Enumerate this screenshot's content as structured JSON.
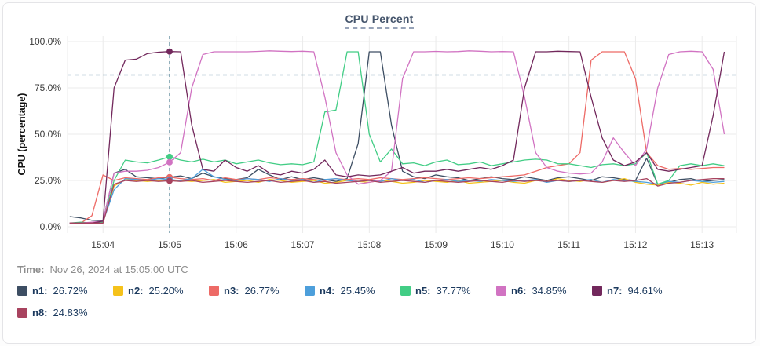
{
  "panel": {
    "title": "CPU Percent"
  },
  "time": {
    "label": "Time:",
    "value": "Nov 26, 2024 at 15:05:00 UTC"
  },
  "colors": {
    "title": "#44546b",
    "grid": "#ebebeb",
    "axis_text": "#3a3a3a",
    "threshold": "#4d7e92",
    "crosshair": "#4d7e92",
    "legend_text": "#1c3a5e",
    "time_text": "#8d8d8d"
  },
  "chart_data": {
    "type": "line",
    "title": "CPU Percent",
    "xlabel": "",
    "ylabel": "CPU (percentage)",
    "ylim": [
      0,
      100
    ],
    "grid": true,
    "legend_position": "bottom",
    "y_tick_values": [
      100,
      75,
      50,
      25,
      0
    ],
    "y_tick_labels": [
      "100.0%",
      "75.0%",
      "50.0%",
      "25.0%",
      "0.0%"
    ],
    "x_tick_labels": [
      "15:04",
      "15:05",
      "15:06",
      "15:07",
      "15:08",
      "15:09",
      "15:10",
      "15:11",
      "15:12",
      "15:13"
    ],
    "x_tick_seconds": [
      30,
      90,
      150,
      210,
      270,
      330,
      390,
      450,
      510,
      570
    ],
    "x_domain_seconds": [
      -2,
      601
    ],
    "time_start": "15:03:30",
    "sample_step_seconds": 10,
    "threshold_line_percent": 82,
    "crosshair": {
      "time": "15:05:00",
      "t_seconds": 90
    },
    "series": [
      {
        "name": "n1",
        "color": "#3d4e63",
        "values": [
          5.5,
          4.8,
          3.5,
          3.2,
          29,
          31,
          27,
          26.5,
          26,
          26.72,
          27.5,
          26,
          29,
          27,
          26,
          25.5,
          26.5,
          31,
          28,
          25.5,
          27,
          25.5,
          26.5,
          25.5,
          24.5,
          26,
          45,
          94.5,
          94.5,
          55,
          30,
          27,
          26,
          28,
          27,
          26.5,
          25,
          26,
          27,
          26,
          25.5,
          27,
          26,
          25,
          26.5,
          27,
          26,
          25,
          27,
          26.5,
          25.5,
          25,
          37,
          23,
          24,
          25.5,
          26,
          24.5,
          25,
          25.5
        ]
      },
      {
        "name": "n2",
        "color": "#f5c21b",
        "values": [
          2,
          2,
          2,
          2.2,
          22,
          25.5,
          25,
          24.5,
          25,
          25.2,
          25,
          24.5,
          25,
          25.5,
          24,
          24.5,
          25,
          24,
          25.5,
          25,
          24,
          24.5,
          25,
          23.5,
          24,
          25,
          24.5,
          24,
          25,
          24.5,
          23.5,
          24,
          25,
          24.5,
          24,
          25,
          23.5,
          24,
          24.5,
          25,
          24,
          23.5,
          25,
          24.5,
          26,
          25,
          24.5,
          25.5,
          24,
          25,
          26,
          24,
          23,
          22.5,
          24,
          23.5,
          22.5,
          24,
          23,
          23.5
        ]
      },
      {
        "name": "n3",
        "color": "#ed6a66",
        "values": [
          2,
          2,
          6,
          28,
          25,
          26.5,
          26,
          25.5,
          26.5,
          26.77,
          26,
          25.5,
          26,
          25,
          26.5,
          25.5,
          26,
          25.5,
          26.5,
          26,
          25.5,
          26,
          25.5,
          25,
          26,
          25.5,
          26,
          25.5,
          26.5,
          26,
          25.5,
          26,
          26.5,
          26,
          25.5,
          26,
          26.5,
          26,
          26.5,
          27,
          27.5,
          28,
          30,
          32,
          33,
          34,
          40,
          90,
          94.5,
          94.5,
          94.5,
          80,
          40,
          33,
          31,
          31.5,
          31,
          31.5,
          32,
          32
        ]
      },
      {
        "name": "n4",
        "color": "#4d9fdb",
        "values": [
          2,
          2,
          2,
          2.5,
          20,
          26,
          25.5,
          25,
          26,
          25.45,
          25,
          26,
          31,
          27,
          25.5,
          25,
          26,
          25.5,
          24.5,
          26,
          25,
          25.5,
          24,
          25.5,
          26,
          25,
          24.5,
          25,
          24.5,
          26,
          25,
          25.5,
          24,
          25,
          25.5,
          24.5,
          25,
          24.5,
          25.5,
          25,
          24.5,
          25,
          25.5,
          24,
          25,
          24.5,
          25,
          25.5,
          24,
          25.5,
          25,
          24.5,
          24,
          23,
          24.5,
          24,
          25,
          24.5,
          24,
          24.5
        ]
      },
      {
        "name": "n5",
        "color": "#42cd85",
        "values": [
          2,
          2.5,
          2,
          2.5,
          25,
          36,
          35,
          34.5,
          36,
          37.77,
          36,
          35,
          36.5,
          35,
          36,
          34,
          35,
          36,
          34.5,
          33.5,
          34,
          33.5,
          35,
          62,
          63,
          94.5,
          94.5,
          50,
          35,
          42,
          34,
          34.5,
          33,
          35,
          36,
          33.5,
          34,
          35,
          33,
          34,
          35,
          36,
          36.5,
          36,
          34,
          34,
          33,
          32,
          33.5,
          34,
          33,
          34,
          40,
          23,
          25,
          33,
          34,
          33,
          34,
          33
        ]
      },
      {
        "name": "n6",
        "color": "#d173c2",
        "values": [
          2,
          2,
          2.5,
          3,
          29,
          30,
          30,
          30.5,
          32,
          34.85,
          40,
          75,
          93,
          94.5,
          94.5,
          94.5,
          94.5,
          94.7,
          95,
          94.8,
          94.6,
          94.8,
          94.5,
          70,
          40,
          28,
          23,
          24,
          25,
          30,
          80,
          94.5,
          94.5,
          94.7,
          94.5,
          94.6,
          95,
          94.8,
          94.5,
          94.6,
          94.5,
          70,
          40,
          32,
          30,
          29,
          28.5,
          29,
          35,
          48,
          40,
          33,
          42,
          75,
          93,
          94.5,
          94.8,
          94.5,
          85,
          50
        ]
      },
      {
        "name": "n7",
        "color": "#72285c",
        "values": [
          2,
          2,
          2,
          3,
          75,
          90,
          90.5,
          93.5,
          94.3,
          94.61,
          94.5,
          55,
          31,
          30,
          36,
          32,
          30,
          33,
          29,
          28,
          30,
          29,
          31,
          36,
          28,
          27,
          28,
          27.5,
          28,
          30,
          32,
          29,
          30,
          30,
          31,
          30,
          31,
          32,
          31,
          33,
          36,
          75,
          94.5,
          94.5,
          94.8,
          94.6,
          94.5,
          70,
          48,
          36,
          33,
          35,
          40,
          31,
          30,
          31,
          32,
          33,
          60,
          94.5
        ]
      },
      {
        "name": "n8",
        "color": "#a8435f",
        "values": [
          2,
          2,
          2,
          2,
          23,
          25,
          24.5,
          25,
          24.5,
          24.83,
          24.5,
          25,
          24,
          24.5,
          25,
          24.5,
          24,
          24.5,
          25,
          24,
          24.5,
          25,
          24,
          24.5,
          23.5,
          24,
          24.5,
          25,
          24,
          24.5,
          25,
          24.5,
          24,
          25,
          24.5,
          24,
          24.5,
          25,
          24.5,
          24,
          25,
          24.5,
          25,
          24.5,
          25,
          24.5,
          25,
          24.5,
          24,
          25,
          24.5,
          25,
          26,
          22,
          23.5,
          24,
          25,
          25.5,
          26,
          26
        ]
      }
    ],
    "legend": [
      {
        "name": "n1",
        "label": "n1:",
        "value": "26.72%",
        "numeric": 26.72,
        "color": "#3d4e63"
      },
      {
        "name": "n2",
        "label": "n2:",
        "value": "25.20%",
        "numeric": 25.2,
        "color": "#f5c21b"
      },
      {
        "name": "n3",
        "label": "n3:",
        "value": "26.77%",
        "numeric": 26.77,
        "color": "#ed6a66"
      },
      {
        "name": "n4",
        "label": "n4:",
        "value": "25.45%",
        "numeric": 25.45,
        "color": "#4d9fdb"
      },
      {
        "name": "n5",
        "label": "n5:",
        "value": "37.77%",
        "numeric": 37.77,
        "color": "#42cd85"
      },
      {
        "name": "n6",
        "label": "n6:",
        "value": "34.85%",
        "numeric": 34.85,
        "color": "#d173c2"
      },
      {
        "name": "n7",
        "label": "n7:",
        "value": "94.61%",
        "numeric": 94.61,
        "color": "#72285c"
      },
      {
        "name": "n8",
        "label": "n8:",
        "value": "24.83%",
        "numeric": 24.83,
        "color": "#a8435f"
      }
    ]
  }
}
